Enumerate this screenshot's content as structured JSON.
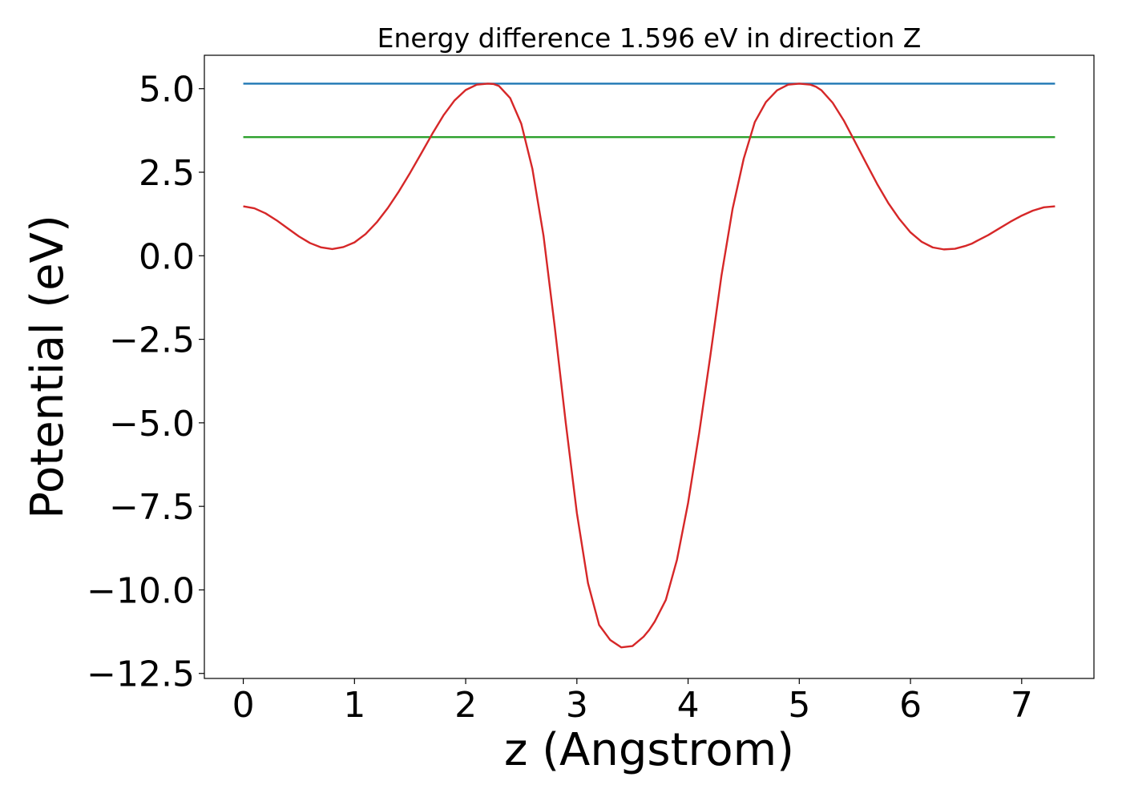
{
  "chart_data": {
    "type": "line",
    "title": "Energy difference 1.596 eV in direction Z",
    "xlabel": "z (Angstrom)",
    "ylabel": "Potential (eV)",
    "xlim": [
      -0.35,
      7.65
    ],
    "ylim": [
      -12.65,
      6.0
    ],
    "xticks": [
      0,
      1,
      2,
      3,
      4,
      5,
      6,
      7
    ],
    "xtick_labels": [
      "0",
      "1",
      "2",
      "3",
      "4",
      "5",
      "6",
      "7"
    ],
    "yticks": [
      5.0,
      2.5,
      0.0,
      -2.5,
      -5.0,
      -7.5,
      -10.0,
      -12.5
    ],
    "ytick_labels": [
      "5.0",
      "2.5",
      "0.0",
      "−2.5",
      "−5.0",
      "−7.5",
      "−10.0",
      "−12.5"
    ],
    "grid": false,
    "series": [
      {
        "color": "#1f77b4",
        "x": [
          0.0,
          7.3
        ],
        "y": [
          5.15,
          5.15
        ]
      },
      {
        "color": "#2ca02c",
        "x": [
          0.0,
          7.3
        ],
        "y": [
          3.55,
          3.55
        ]
      },
      {
        "color": "#d62728",
        "x": [
          0.0,
          0.1,
          0.2,
          0.3,
          0.4,
          0.5,
          0.6,
          0.7,
          0.8,
          0.9,
          1.0,
          1.1,
          1.2,
          1.3,
          1.4,
          1.5,
          1.6,
          1.7,
          1.8,
          1.9,
          2.0,
          2.1,
          2.2,
          2.25,
          2.3,
          2.4,
          2.5,
          2.6,
          2.7,
          2.8,
          2.9,
          3.0,
          3.1,
          3.2,
          3.3,
          3.4,
          3.5,
          3.6,
          3.65,
          3.7,
          3.8,
          3.9,
          4.0,
          4.1,
          4.2,
          4.3,
          4.4,
          4.5,
          4.6,
          4.7,
          4.8,
          4.9,
          5.0,
          5.1,
          5.15,
          5.2,
          5.3,
          5.4,
          5.5,
          5.6,
          5.7,
          5.8,
          5.9,
          6.0,
          6.1,
          6.2,
          6.3,
          6.4,
          6.5,
          6.55,
          6.6,
          6.7,
          6.8,
          6.9,
          7.0,
          7.1,
          7.2,
          7.3
        ],
        "y": [
          1.48,
          1.42,
          1.27,
          1.06,
          0.82,
          0.58,
          0.38,
          0.25,
          0.2,
          0.26,
          0.4,
          0.65,
          1.0,
          1.43,
          1.93,
          2.48,
          3.06,
          3.65,
          4.2,
          4.65,
          4.96,
          5.12,
          5.15,
          5.14,
          5.08,
          4.72,
          3.95,
          2.6,
          0.6,
          -2.1,
          -5.0,
          -7.7,
          -9.8,
          -11.05,
          -11.5,
          -11.72,
          -11.68,
          -11.4,
          -11.2,
          -10.95,
          -10.3,
          -9.1,
          -7.4,
          -5.3,
          -3.0,
          -0.6,
          1.4,
          2.9,
          4.0,
          4.6,
          4.95,
          5.12,
          5.15,
          5.12,
          5.06,
          4.95,
          4.58,
          4.05,
          3.42,
          2.78,
          2.15,
          1.58,
          1.1,
          0.7,
          0.42,
          0.25,
          0.19,
          0.21,
          0.3,
          0.36,
          0.45,
          0.62,
          0.82,
          1.02,
          1.2,
          1.35,
          1.45,
          1.48
        ]
      }
    ]
  }
}
